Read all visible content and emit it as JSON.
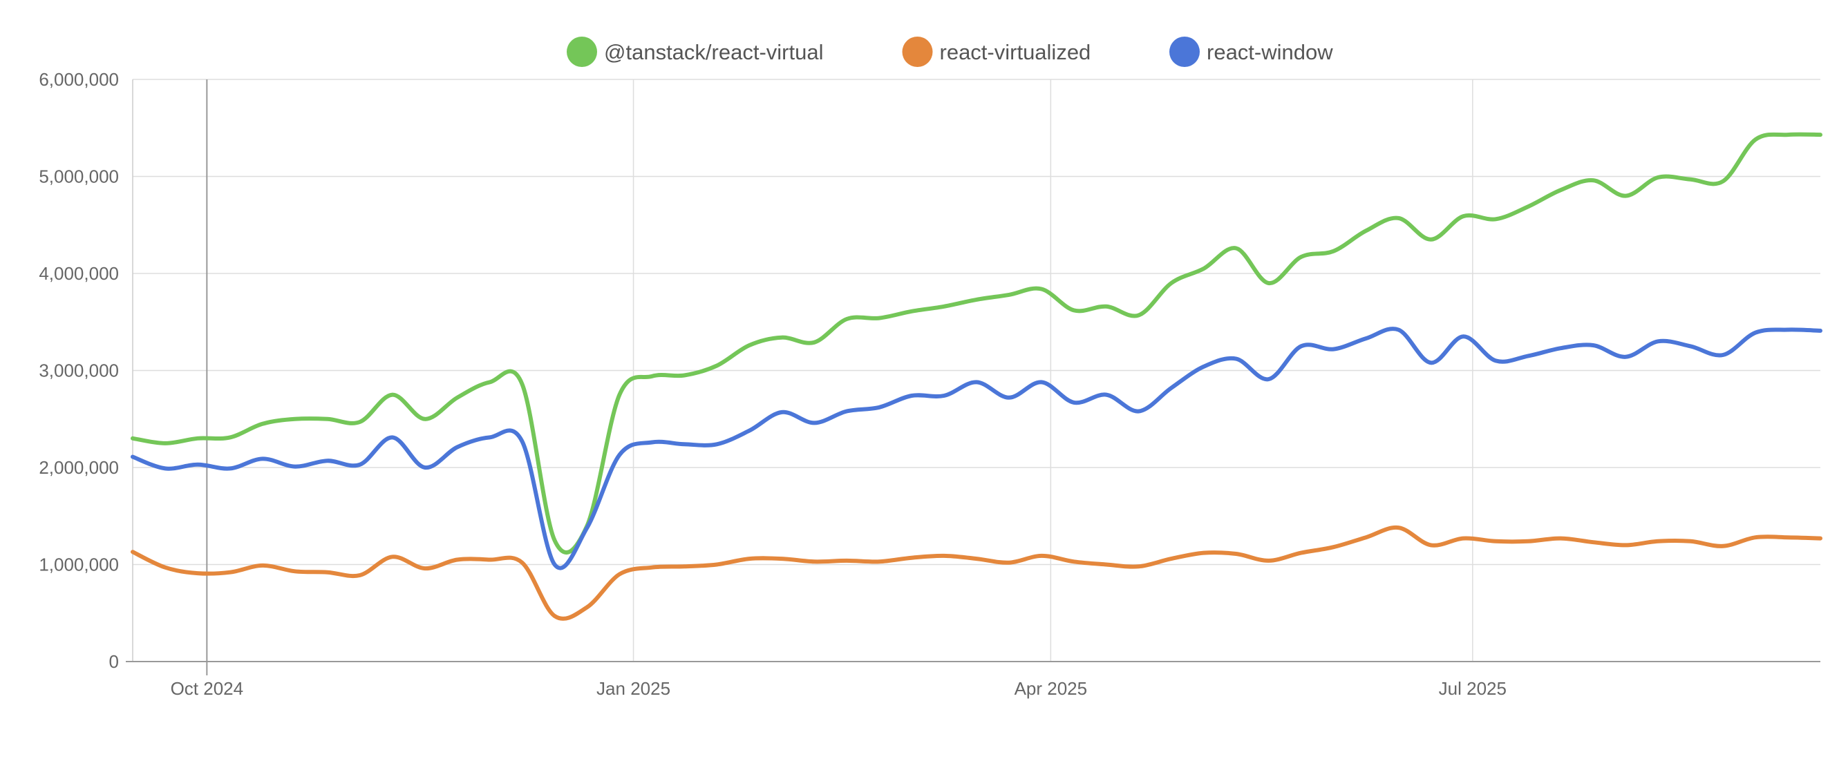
{
  "chart_data": {
    "type": "line",
    "title": "",
    "xlabel": "",
    "ylabel": "",
    "legend_position": "top-center",
    "grid": true,
    "xlim": [
      "2024-09-15",
      "2025-09-14"
    ],
    "ylim": [
      0,
      6000000
    ],
    "y_ticks": [
      0,
      1000000,
      2000000,
      3000000,
      4000000,
      5000000,
      6000000
    ],
    "y_tick_labels": [
      "0",
      "1,000,000",
      "2,000,000",
      "3,000,000",
      "4,000,000",
      "5,000,000",
      "6,000,000"
    ],
    "x_ticks": [
      "2024-10-01",
      "2025-01-01",
      "2025-04-01",
      "2025-07-01"
    ],
    "x_tick_labels": [
      "Oct 2024",
      "Jan 2025",
      "Apr 2025",
      "Jul 2025"
    ],
    "x": [
      "2024-09-15",
      "2024-09-22",
      "2024-09-29",
      "2024-10-06",
      "2024-10-13",
      "2024-10-20",
      "2024-10-27",
      "2024-11-03",
      "2024-11-10",
      "2024-11-17",
      "2024-11-24",
      "2024-12-01",
      "2024-12-08",
      "2024-12-15",
      "2024-12-22",
      "2024-12-29",
      "2025-01-05",
      "2025-01-12",
      "2025-01-19",
      "2025-01-26",
      "2025-02-02",
      "2025-02-09",
      "2025-02-16",
      "2025-02-23",
      "2025-03-02",
      "2025-03-09",
      "2025-03-16",
      "2025-03-23",
      "2025-03-30",
      "2025-04-06",
      "2025-04-13",
      "2025-04-20",
      "2025-04-27",
      "2025-05-04",
      "2025-05-11",
      "2025-05-18",
      "2025-05-25",
      "2025-06-01",
      "2025-06-08",
      "2025-06-15",
      "2025-06-22",
      "2025-06-29",
      "2025-07-06",
      "2025-07-13",
      "2025-07-20",
      "2025-07-27",
      "2025-08-03",
      "2025-08-10",
      "2025-08-17",
      "2025-08-24",
      "2025-08-31",
      "2025-09-07",
      "2025-09-14"
    ],
    "series": [
      {
        "name": "@tanstack/react-virtual",
        "color": "#74c658",
        "values": [
          2300000,
          2250000,
          2300000,
          2310000,
          2450000,
          2500000,
          2500000,
          2470000,
          2750000,
          2500000,
          2720000,
          2880000,
          2860000,
          1250000,
          1400000,
          2750000,
          2940000,
          2950000,
          3050000,
          3260000,
          3340000,
          3290000,
          3530000,
          3540000,
          3610000,
          3660000,
          3730000,
          3780000,
          3840000,
          3620000,
          3660000,
          3570000,
          3900000,
          4050000,
          4260000,
          3900000,
          4170000,
          4230000,
          4440000,
          4570000,
          4350000,
          4590000,
          4560000,
          4690000,
          4860000,
          4960000,
          4800000,
          4990000,
          4970000,
          4950000,
          5380000,
          5430000,
          5430000
        ]
      },
      {
        "name": "react-virtualized",
        "color": "#e4873c",
        "values": [
          1130000,
          970000,
          910000,
          920000,
          990000,
          930000,
          920000,
          890000,
          1080000,
          960000,
          1050000,
          1050000,
          1020000,
          470000,
          560000,
          900000,
          970000,
          980000,
          1000000,
          1060000,
          1060000,
          1030000,
          1040000,
          1030000,
          1070000,
          1090000,
          1060000,
          1020000,
          1090000,
          1030000,
          1000000,
          980000,
          1060000,
          1120000,
          1110000,
          1040000,
          1120000,
          1180000,
          1280000,
          1380000,
          1200000,
          1270000,
          1240000,
          1240000,
          1270000,
          1230000,
          1200000,
          1240000,
          1240000,
          1190000,
          1280000,
          1280000,
          1270000
        ]
      },
      {
        "name": "react-window",
        "color": "#4b76d8",
        "values": [
          2110000,
          1990000,
          2030000,
          1990000,
          2090000,
          2010000,
          2070000,
          2030000,
          2310000,
          2000000,
          2210000,
          2310000,
          2270000,
          1000000,
          1380000,
          2130000,
          2260000,
          2240000,
          2240000,
          2380000,
          2570000,
          2460000,
          2580000,
          2620000,
          2740000,
          2740000,
          2880000,
          2720000,
          2880000,
          2670000,
          2750000,
          2580000,
          2820000,
          3040000,
          3120000,
          2910000,
          3250000,
          3220000,
          3330000,
          3420000,
          3080000,
          3350000,
          3100000,
          3150000,
          3230000,
          3260000,
          3140000,
          3300000,
          3250000,
          3160000,
          3390000,
          3420000,
          3410000
        ]
      }
    ]
  }
}
